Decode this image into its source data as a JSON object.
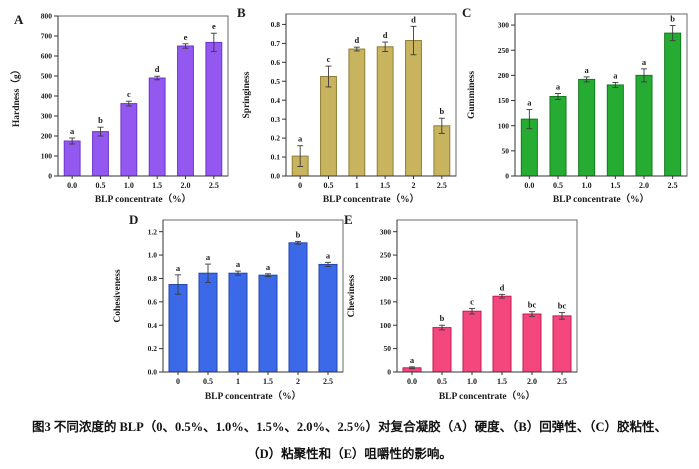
{
  "figure": {
    "caption_line1": "图3 不同浓度的 BLP（0、0.5%、1.0%、1.5%、2.0%、2.5%）对复合凝胶（A）硬度、（B）回弹性、（C）胶粘性、",
    "caption_line2": "（D）粘聚性和（E）咀嚼性的影响。"
  },
  "chart_data": [
    {
      "panel_label": "A",
      "type": "bar",
      "title": "",
      "xlabel": "BLP concentrate（%）",
      "ylabel": "Hardness（g）",
      "categories": [
        "0.0",
        "0.5",
        "1.0",
        "1.5",
        "2.0",
        "2.5"
      ],
      "values": [
        175,
        222,
        362,
        490,
        650,
        668
      ],
      "errors": [
        15,
        22,
        12,
        9,
        11,
        46
      ],
      "sig_letters": [
        "a",
        "b",
        "c",
        "d",
        "e",
        "e"
      ],
      "ylim": [
        0,
        800
      ],
      "yticks": [
        0,
        100,
        200,
        300,
        400,
        500,
        600,
        700,
        800
      ],
      "ytick_labels": [
        "0",
        "100",
        "200",
        "300",
        "400",
        "500",
        "600",
        "700",
        "800"
      ],
      "grid": false,
      "legend": null,
      "bar_color": "#9358F0",
      "bar_border": "#6F37C8"
    },
    {
      "panel_label": "B",
      "type": "bar",
      "title": "",
      "xlabel": "BLP concentrate（%）",
      "ylabel": "Springiness",
      "categories": [
        "0",
        "0.5",
        "1",
        "1.5",
        "2",
        "2.5"
      ],
      "values": [
        0.105,
        0.525,
        0.67,
        0.682,
        0.715,
        0.265
      ],
      "errors": [
        0.055,
        0.055,
        0.01,
        0.025,
        0.075,
        0.04
      ],
      "sig_letters": [
        "a",
        "c",
        "d",
        "d",
        "d",
        "b"
      ],
      "ylim": [
        0,
        0.855
      ],
      "yticks": [
        0,
        0.1,
        0.2,
        0.3,
        0.4,
        0.5,
        0.6,
        0.7,
        0.8
      ],
      "ytick_labels": [
        "0.0",
        "0.1",
        "0.2",
        "0.3",
        "0.4",
        "0.5",
        "0.6",
        "0.7",
        "0.8"
      ],
      "grid": false,
      "legend": null,
      "bar_color": "#C8B45E",
      "bar_border": "#8F7E35"
    },
    {
      "panel_label": "C",
      "type": "bar",
      "title": "",
      "xlabel": "BLP concentrate（%）",
      "ylabel": "Gumminess",
      "categories": [
        "0.0",
        "0.5",
        "1.0",
        "1.5",
        "2.0",
        "2.5"
      ],
      "values": [
        113,
        158,
        192,
        181,
        200,
        284
      ],
      "errors": [
        19,
        6,
        5,
        5,
        13,
        15
      ],
      "sig_letters": [
        "a",
        "a",
        "a",
        "a",
        "a",
        "b"
      ],
      "ylim": [
        0,
        322
      ],
      "yticks": [
        0,
        50,
        100,
        150,
        200,
        250,
        300
      ],
      "ytick_labels": [
        "0",
        "50",
        "100",
        "150",
        "200",
        "250",
        "300"
      ],
      "grid": false,
      "legend": null,
      "bar_color": "#26AC33",
      "bar_border": "#127A1E"
    },
    {
      "panel_label": "D",
      "type": "bar",
      "title": "",
      "xlabel": "BLP concentrate（%）",
      "ylabel": "Cohesiveness",
      "categories": [
        "0",
        "0.5",
        "1",
        "1.5",
        "2",
        "2.5"
      ],
      "values": [
        0.748,
        0.845,
        0.845,
        0.828,
        1.105,
        0.92
      ],
      "errors": [
        0.083,
        0.078,
        0.018,
        0.012,
        0.012,
        0.018
      ],
      "sig_letters": [
        "a",
        "a",
        "a",
        "a",
        "b",
        "a"
      ],
      "ylim": [
        0,
        1.3
      ],
      "yticks": [
        0,
        0.2,
        0.4,
        0.6,
        0.8,
        1.0,
        1.2
      ],
      "ytick_labels": [
        "0.0",
        "0.2",
        "0.4",
        "0.6",
        "0.8",
        "1.0",
        "1.2"
      ],
      "grid": false,
      "legend": null,
      "bar_color": "#3B69E8",
      "bar_border": "#2146AE"
    },
    {
      "panel_label": "E",
      "type": "bar",
      "title": "",
      "xlabel": "BLP concentrate（%）",
      "ylabel": "Chewiness",
      "categories": [
        "0.0",
        "0.5",
        "1.0",
        "1.5",
        "2.0",
        "2.5"
      ],
      "values": [
        9,
        95,
        130,
        162,
        124,
        120
      ],
      "errors": [
        2,
        5,
        6,
        4,
        5,
        7
      ],
      "sig_letters": [
        "a",
        "b",
        "c",
        "d",
        "bc",
        "bc"
      ],
      "ylim": [
        0,
        325
      ],
      "yticks": [
        0,
        50,
        100,
        150,
        200,
        250,
        300
      ],
      "ytick_labels": [
        "0",
        "50",
        "100",
        "150",
        "200",
        "250",
        "300"
      ],
      "grid": false,
      "legend": null,
      "bar_color": "#F4477E",
      "bar_border": "#C01C52"
    }
  ]
}
